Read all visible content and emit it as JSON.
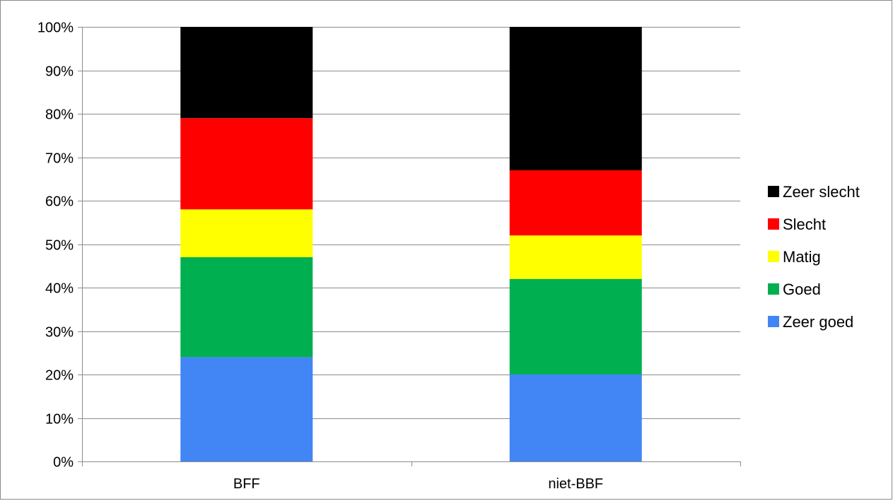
{
  "chart_data": {
    "type": "bar",
    "stacked": true,
    "percent": true,
    "categories": [
      "BFF",
      "niet-BBF"
    ],
    "series": [
      {
        "name": "Zeer goed",
        "color": "#4285f4",
        "values": [
          24,
          20
        ]
      },
      {
        "name": "Goed",
        "color": "#00b050",
        "values": [
          23,
          22
        ]
      },
      {
        "name": "Matig",
        "color": "#ffff00",
        "values": [
          11,
          10
        ]
      },
      {
        "name": "Slecht",
        "color": "#ff0000",
        "values": [
          21,
          15
        ]
      },
      {
        "name": "Zeer slecht",
        "color": "#000000",
        "values": [
          21,
          33
        ]
      }
    ],
    "ylim": [
      0,
      100
    ],
    "yticks": [
      "0%",
      "10%",
      "20%",
      "30%",
      "40%",
      "50%",
      "60%",
      "70%",
      "80%",
      "90%",
      "100%"
    ],
    "grid": true,
    "legend_position": "right",
    "title": "",
    "xlabel": "",
    "ylabel": ""
  }
}
